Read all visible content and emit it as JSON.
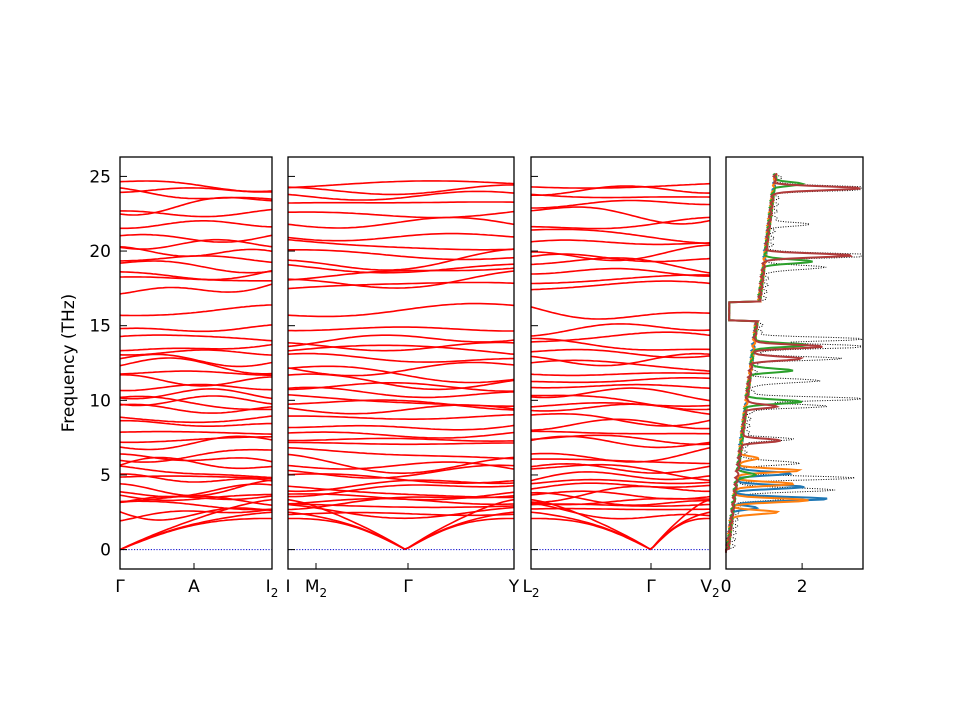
{
  "chart_data": [
    {
      "type": "line",
      "panel": "band-structure",
      "ylabel": "Frequency (THz)",
      "ylim": [
        -1.3,
        26.3
      ],
      "yticks": [
        0,
        5,
        10,
        15,
        20,
        25
      ],
      "band_color": "#ff0000",
      "zero_line_color": "#0000cc",
      "segments": [
        {
          "from": "Γ",
          "to": "A",
          "to2": "I₂"
        },
        {
          "from": "I",
          "mid": "M₂",
          "to": "Γ",
          "to2": "Y"
        },
        {
          "from": "L₂",
          "to": "Γ",
          "to2": "V₂"
        }
      ],
      "tick_labels": [
        {
          "text": "Γ"
        },
        {
          "text": "A"
        },
        {
          "text": "I",
          "sub": "2"
        },
        {
          "text": "I"
        },
        {
          "text": "M",
          "sub": "2"
        },
        {
          "text": "Γ"
        },
        {
          "text": "Y"
        },
        {
          "text": "L",
          "sub": "2"
        },
        {
          "text": "Γ"
        },
        {
          "text": "V",
          "sub": "2"
        }
      ],
      "band_gaps_approx": [
        "between ~16.3 and ~17.0 THz (partial)"
      ],
      "notes": "Acoustic branches start at 0 THz at Γ; ~48 optical branches between ~2 and ~24.5 THz."
    },
    {
      "type": "line",
      "panel": "phonon-dos",
      "xlim": [
        0,
        3.6
      ],
      "xticks": [
        0,
        2
      ],
      "series": [
        {
          "color": "#000000",
          "style": "dotted"
        },
        {
          "color": "#1f77b4"
        },
        {
          "color": "#ff7f0e"
        },
        {
          "color": "#2ca02c"
        },
        {
          "color": "#b03a3a"
        }
      ]
    }
  ]
}
